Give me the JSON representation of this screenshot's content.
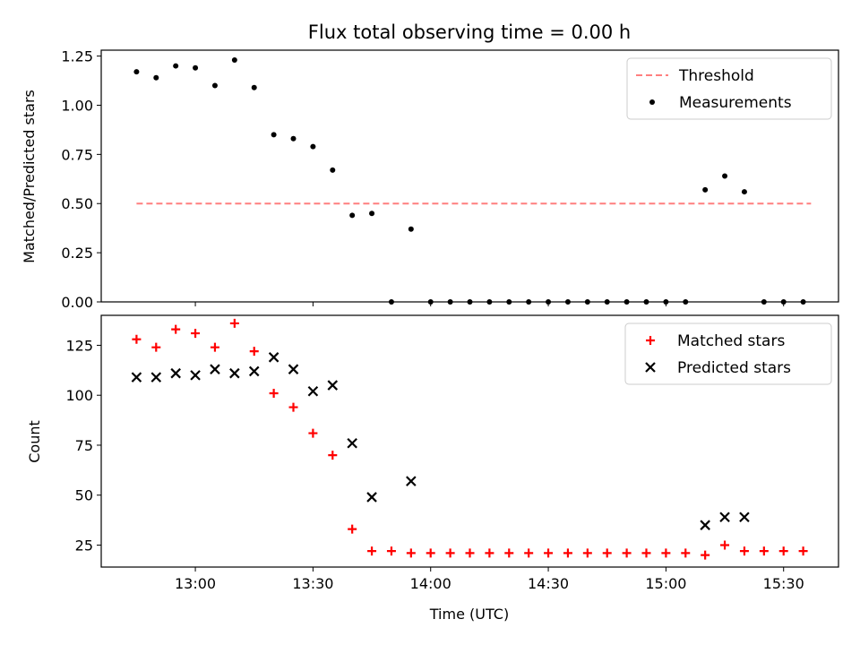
{
  "chart_data": [
    {
      "type": "scatter",
      "title": "Flux total observing time = 0.00 h",
      "xlabel": "",
      "ylabel": "Matched/Predicted stars",
      "xlim": [
        "12:36",
        "15:44"
      ],
      "ylim": [
        0,
        1.28
      ],
      "x_ticks": [
        "13:00",
        "13:30",
        "14:00",
        "14:30",
        "15:00",
        "15:30"
      ],
      "y_ticks": [
        "0.00",
        "0.25",
        "0.50",
        "0.75",
        "1.00",
        "1.25"
      ],
      "grid": false,
      "legend_position": "top-right",
      "series": [
        {
          "name": "Threshold",
          "kind": "line",
          "style": "dashed",
          "color": "#ff7f7f",
          "x": [
            "12:45",
            "15:37"
          ],
          "y": [
            0.5,
            0.5
          ]
        },
        {
          "name": "Measurements",
          "kind": "scatter",
          "marker": "dot",
          "color": "#000000",
          "x": [
            "12:45",
            "12:50",
            "12:55",
            "13:00",
            "13:05",
            "13:10",
            "13:15",
            "13:20",
            "13:25",
            "13:30",
            "13:35",
            "13:40",
            "13:45",
            "13:50",
            "13:55",
            "14:00",
            "14:05",
            "14:10",
            "14:15",
            "14:20",
            "14:25",
            "14:30",
            "14:35",
            "14:40",
            "14:45",
            "14:50",
            "14:55",
            "15:00",
            "15:05",
            "15:10",
            "15:15",
            "15:20",
            "15:25",
            "15:30",
            "15:35"
          ],
          "y": [
            1.17,
            1.14,
            1.2,
            1.19,
            1.1,
            1.23,
            1.09,
            0.85,
            0.83,
            0.79,
            0.67,
            0.44,
            0.45,
            0,
            0.37,
            0,
            0,
            0,
            0,
            0,
            0,
            0,
            0,
            0,
            0,
            0,
            0,
            0,
            0,
            0.57,
            0.64,
            0.56,
            0,
            0,
            0
          ]
        }
      ]
    },
    {
      "type": "scatter",
      "title": "",
      "xlabel": "Time (UTC)",
      "ylabel": "Count",
      "xlim": [
        "12:36",
        "15:44"
      ],
      "ylim": [
        14,
        140
      ],
      "x_ticks": [
        "13:00",
        "13:30",
        "14:00",
        "14:30",
        "15:00",
        "15:30"
      ],
      "y_ticks": [
        "25",
        "50",
        "75",
        "100",
        "125"
      ],
      "grid": false,
      "legend_position": "top-right",
      "series": [
        {
          "name": "Matched stars",
          "marker": "plus",
          "color": "#ff0000",
          "x": [
            "12:45",
            "12:50",
            "12:55",
            "13:00",
            "13:05",
            "13:10",
            "13:15",
            "13:20",
            "13:25",
            "13:30",
            "13:35",
            "13:40",
            "13:45",
            "13:50",
            "13:55",
            "14:00",
            "14:05",
            "14:10",
            "14:15",
            "14:20",
            "14:25",
            "14:30",
            "14:35",
            "14:40",
            "14:45",
            "14:50",
            "14:55",
            "15:00",
            "15:05",
            "15:10",
            "15:15",
            "15:20",
            "15:25",
            "15:30",
            "15:35"
          ],
          "y": [
            128,
            124,
            133,
            131,
            124,
            136,
            122,
            101,
            94,
            81,
            70,
            33,
            22,
            22,
            21,
            21,
            21,
            21,
            21,
            21,
            21,
            21,
            21,
            21,
            21,
            21,
            21,
            21,
            21,
            20,
            25,
            22,
            22,
            22,
            22
          ]
        },
        {
          "name": "Predicted stars",
          "marker": "x",
          "color": "#000000",
          "x": [
            "12:45",
            "12:50",
            "12:55",
            "13:00",
            "13:05",
            "13:10",
            "13:15",
            "13:20",
            "13:25",
            "13:30",
            "13:35",
            "13:40",
            "13:45",
            "13:55",
            "15:10",
            "15:15",
            "15:20"
          ],
          "y": [
            109,
            109,
            111,
            110,
            113,
            111,
            112,
            119,
            113,
            102,
            105,
            76,
            49,
            57,
            35,
            39,
            39
          ]
        }
      ]
    }
  ]
}
